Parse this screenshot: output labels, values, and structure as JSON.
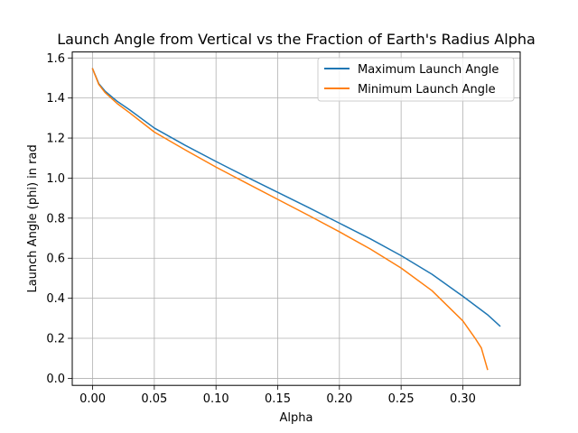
{
  "chart_data": {
    "type": "line",
    "title": "Launch Angle from Vertical vs the Fraction of Earth's Radius Alpha",
    "xlabel": "Alpha",
    "ylabel": "Launch Angle (phi) in rad",
    "xlim": [
      -0.0165,
      0.3465
    ],
    "ylim": [
      -0.035,
      1.63
    ],
    "xticks": [
      0.0,
      0.05,
      0.1,
      0.15,
      0.2,
      0.25,
      0.3
    ],
    "xtick_labels": [
      "0.00",
      "0.05",
      "0.10",
      "0.15",
      "0.20",
      "0.25",
      "0.30"
    ],
    "yticks": [
      0.0,
      0.2,
      0.4,
      0.6,
      0.8,
      1.0,
      1.2,
      1.4,
      1.6
    ],
    "ytick_labels": [
      "0.0",
      "0.2",
      "0.4",
      "0.6",
      "0.8",
      "1.0",
      "1.2",
      "1.4",
      "1.6"
    ],
    "grid": true,
    "legend_position": "top-right",
    "series": [
      {
        "name": "Maximum Launch Angle",
        "color": "#1f77b4",
        "x": [
          0.0,
          0.005,
          0.01,
          0.02,
          0.03,
          0.05,
          0.075,
          0.1,
          0.125,
          0.15,
          0.175,
          0.2,
          0.225,
          0.25,
          0.275,
          0.3,
          0.32,
          0.33
        ],
        "y": [
          1.546,
          1.472,
          1.435,
          1.383,
          1.341,
          1.25,
          1.164,
          1.083,
          1.005,
          0.929,
          0.853,
          0.775,
          0.697,
          0.613,
          0.52,
          0.41,
          0.318,
          0.262
        ]
      },
      {
        "name": "Minimum Launch Angle",
        "color": "#ff7f0e",
        "x": [
          0.0,
          0.005,
          0.01,
          0.02,
          0.03,
          0.05,
          0.075,
          0.1,
          0.125,
          0.15,
          0.175,
          0.2,
          0.225,
          0.25,
          0.275,
          0.3,
          0.31,
          0.315,
          0.32
        ],
        "y": [
          1.546,
          1.468,
          1.428,
          1.372,
          1.326,
          1.23,
          1.141,
          1.055,
          0.974,
          0.894,
          0.814,
          0.732,
          0.646,
          0.551,
          0.438,
          0.287,
          0.2,
          0.152,
          0.045
        ]
      }
    ]
  }
}
